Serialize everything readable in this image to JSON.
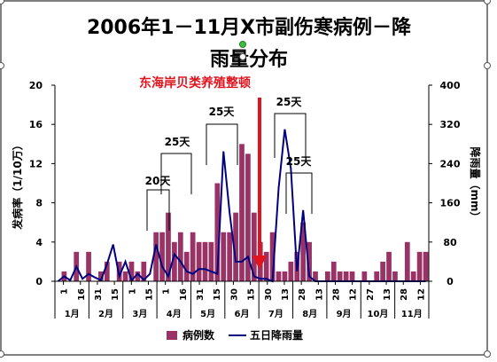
{
  "chart_data": {
    "type": "bar",
    "title_line1": "2006年1－11月X市副伤寒病例－降",
    "title_line2": "雨量分布",
    "ylabel_left": "发病率（1/10万）",
    "ylabel_right": "降雨量（mm）",
    "ylim_left": [
      0,
      20
    ],
    "yticks_left": [
      "0",
      "4",
      "8",
      "12",
      "16",
      "20"
    ],
    "ylim_right": [
      0,
      400
    ],
    "yticks_right": [
      "0",
      "80",
      "160",
      "240",
      "320",
      "400"
    ],
    "x_day_labels": [
      "1",
      "16",
      "31",
      "15",
      "1",
      "15",
      "1",
      "16",
      "31",
      "15",
      "30",
      "15",
      "30",
      "13",
      "28",
      "13",
      "28",
      "12",
      "27",
      "13",
      "28",
      "12"
    ],
    "months": [
      "1月",
      "2月",
      "3月",
      "4月",
      "5月",
      "6月",
      "7月",
      "8月",
      "9月",
      "10月",
      "11月"
    ],
    "grid": false,
    "legend_position": "bottom",
    "series": [
      {
        "name": "病例数",
        "kind": "bar",
        "axis": "left",
        "color": "#993366",
        "values": [
          0,
          1,
          0,
          3,
          0,
          3,
          0,
          1,
          2,
          0,
          2,
          1,
          2,
          1,
          2,
          0,
          5,
          5,
          7,
          4,
          5,
          3,
          5,
          4,
          4,
          4,
          10,
          5,
          5,
          7,
          14,
          13,
          7,
          4,
          3,
          5,
          1,
          1,
          2,
          3,
          6,
          4,
          1,
          0,
          1,
          2,
          1,
          1,
          1,
          0,
          1,
          0,
          1,
          2,
          3,
          1,
          0,
          4,
          1,
          3,
          3
        ]
      },
      {
        "name": "五日降雨量",
        "kind": "line",
        "axis": "right",
        "color": "#000080",
        "values": [
          0,
          10,
          2,
          30,
          5,
          15,
          8,
          2,
          35,
          75,
          10,
          40,
          2,
          15,
          3,
          15,
          75,
          30,
          10,
          55,
          40,
          20,
          15,
          25,
          25,
          20,
          15,
          265,
          140,
          40,
          40,
          50,
          10,
          5,
          5,
          0,
          190,
          310,
          230,
          20,
          145,
          10,
          0,
          0,
          0,
          0,
          0,
          0,
          0,
          0,
          0,
          0,
          0,
          0,
          0,
          0,
          0,
          0,
          0,
          0,
          0
        ]
      }
    ],
    "annotations": {
      "event_label": "东海岸贝类养殖整顿",
      "event_color": "#e0141e",
      "bracket_labels": [
        "20天",
        "25天",
        "25天",
        "25天",
        "25天"
      ]
    }
  }
}
